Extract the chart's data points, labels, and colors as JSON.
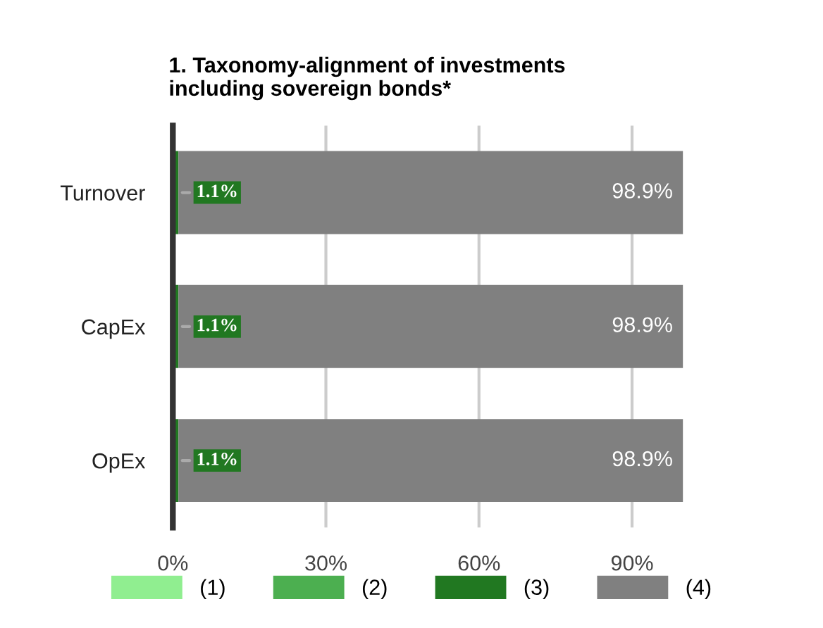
{
  "chart_data": {
    "type": "bar",
    "orientation": "horizontal",
    "stacked": true,
    "title": "1. Taxonomy-alignment of investments\nincluding sovereign bonds*",
    "categories": [
      "Turnover",
      "CapEx",
      "OpEx"
    ],
    "series": [
      {
        "name": "(1)",
        "color": "#90ee90",
        "values": [
          null,
          null,
          null
        ]
      },
      {
        "name": "(2)",
        "color": "#4caf50",
        "values": [
          null,
          null,
          null
        ]
      },
      {
        "name": "(3)",
        "color": "#217821",
        "values": [
          1.1,
          1.1,
          1.1
        ],
        "value_labels": [
          "1.1%",
          "1.1%",
          "1.1%"
        ]
      },
      {
        "name": "(4)",
        "color": "#808080",
        "values": [
          98.9,
          98.9,
          98.9
        ],
        "value_labels": [
          "98.9%",
          "98.9%",
          "98.9%"
        ]
      }
    ],
    "xlim": [
      0,
      100
    ],
    "xticks": [
      {
        "value": 0,
        "label": "0%"
      },
      {
        "value": 30,
        "label": "30%"
      },
      {
        "value": 60,
        "label": "60%"
      },
      {
        "value": 90,
        "label": "90%"
      }
    ],
    "grid": "x",
    "legend": "bottom"
  }
}
